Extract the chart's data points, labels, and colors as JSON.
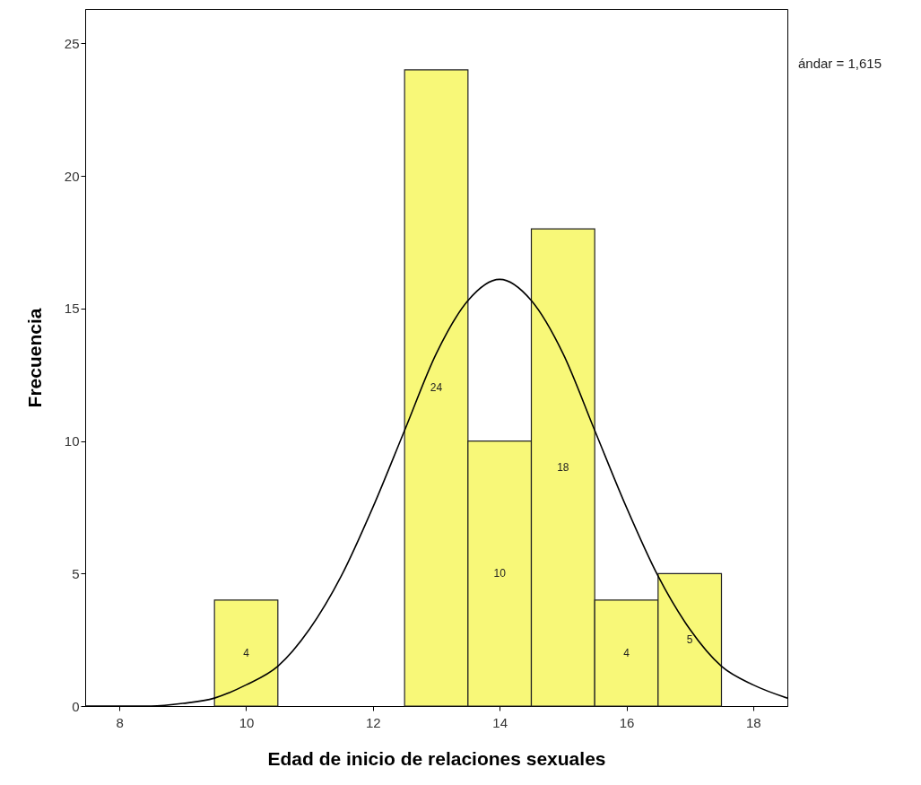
{
  "chart_data": {
    "type": "histogram",
    "xlabel": "Edad de inicio de relaciones sexuales",
    "ylabel": "Frecuencia",
    "bins": [
      9.5,
      10.5,
      11.5,
      12.5,
      13.5,
      14.5,
      15.5,
      16.5,
      17.5
    ],
    "series": [
      {
        "color": "#f8f878",
        "values": [
          4,
          0,
          0,
          24,
          10,
          18,
          4,
          5
        ],
        "value_labels": [
          "4",
          null,
          null,
          "24",
          "10",
          "18",
          "4",
          "5"
        ]
      },
      {
        "type": "line",
        "color": "#000000",
        "x": [
          7.46,
          8,
          8.5,
          9,
          9.5,
          10,
          10.5,
          11,
          11.5,
          12,
          12.5,
          13,
          13.5,
          14,
          14.5,
          15,
          15.5,
          16,
          16.5,
          17,
          17.5,
          18,
          18.54
        ],
        "values": [
          0.0,
          0.0,
          0.0,
          0.1,
          0.3,
          0.8,
          1.5,
          2.9,
          4.9,
          7.5,
          10.4,
          13.3,
          15.3,
          16.1,
          15.3,
          13.3,
          10.4,
          7.5,
          4.9,
          2.9,
          1.5,
          0.8,
          0.3
        ]
      }
    ],
    "xlim": [
      7.46,
      18.54
    ],
    "xticks": [
      8,
      10,
      12,
      14,
      16,
      18
    ],
    "ylim": [
      0,
      26.3
    ],
    "yticks": [
      0,
      5,
      10,
      15,
      20,
      25
    ],
    "grid": false,
    "annotations": [
      "ándar = 1,615"
    ]
  }
}
